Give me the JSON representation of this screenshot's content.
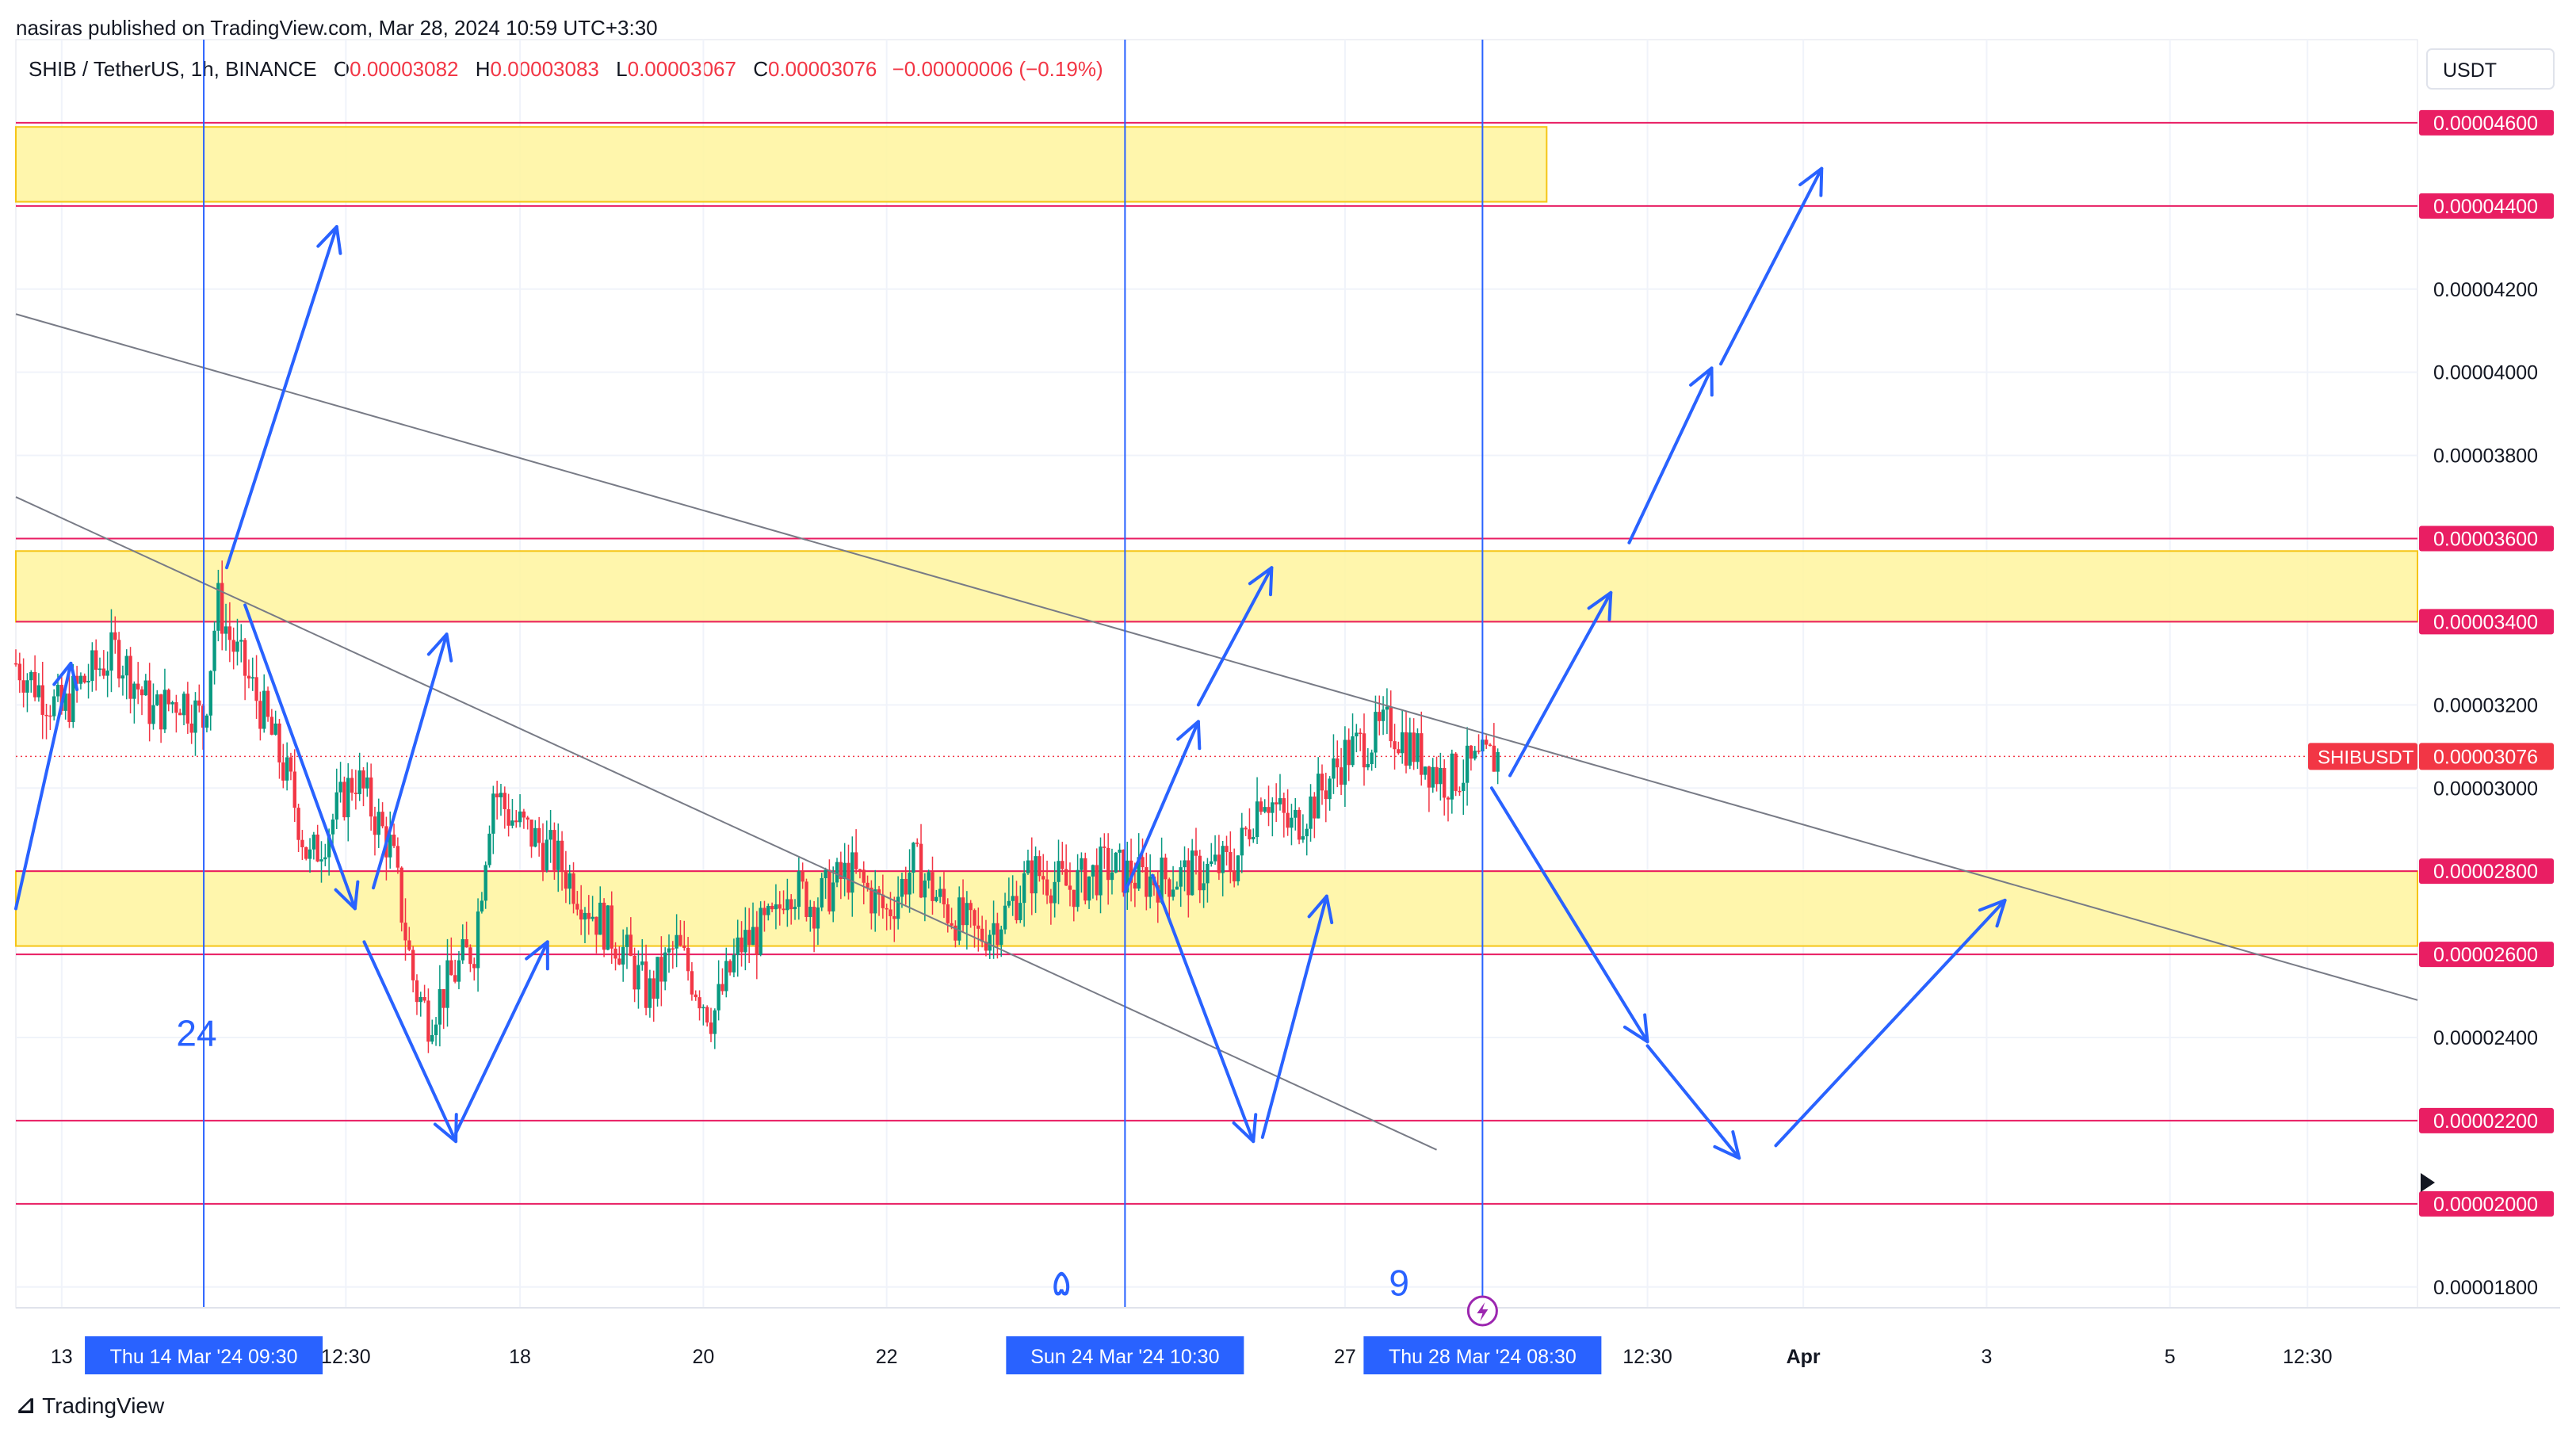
{
  "header": {
    "publisher": "nasiras published on TradingView.com, Mar 28, 2024 10:59 UTC+3:30"
  },
  "legend": {
    "symbol": "SHIB / TetherUS, 1h, BINANCE",
    "open_label": "O",
    "open": "0.00003082",
    "high_label": "H",
    "high": "0.00003083",
    "low_label": "L",
    "low": "0.00003067",
    "close_label": "C",
    "close": "0.00003076",
    "change": "−0.00000006 (−0.19%)"
  },
  "currency_button": "USDT",
  "footer": {
    "logo_text": "TradingView"
  },
  "colors": {
    "up": "#089981",
    "down": "#f23645",
    "zone": "#fff59d",
    "zone_border": "#f5c518",
    "level_line": "#e91e63",
    "arrow": "#2962ff",
    "trendline": "#787b86",
    "price_label_bg": "#f23645"
  },
  "chart_data": {
    "type": "candlestick",
    "symbol": "SHIBUSDT",
    "interval": "1h",
    "ylim": [
      1.75e-05,
      4.8e-05
    ],
    "y_ticks": [
      "0.00001800",
      "0.00002000",
      "0.00002200",
      "0.00002400",
      "0.00002600",
      "0.00002800",
      "0.00003000",
      "0.00003200",
      "0.00003400",
      "0.00003600",
      "0.00003800",
      "0.00004000",
      "0.00004200",
      "0.00004400",
      "0.00004600"
    ],
    "highlighted_levels": [
      "0.00004600",
      "0.00004400",
      "0.00003600",
      "0.00003400",
      "0.00002800",
      "0.00002600",
      "0.00002200",
      "0.00002000"
    ],
    "x_ticks": [
      "13",
      "12:30",
      "18",
      "20",
      "22",
      "27",
      "12:30",
      "Apr",
      "3",
      "5",
      "12:30"
    ],
    "x_tick_days": [
      13,
      16.1,
      18,
      20,
      22,
      27,
      30.3,
      32,
      34,
      36,
      37.5
    ],
    "xlim": [
      12.5,
      38.7
    ],
    "last_price": "0.00003076",
    "last_price_label": "SHIBUSDT",
    "time_markers": [
      {
        "label": "Thu 14 Mar '24   09:30",
        "day": 14.55
      },
      {
        "label": "Sun 24 Mar '24   10:30",
        "day": 24.6
      },
      {
        "label": "Thu 28 Mar '24   08:30",
        "day": 28.5
      }
    ],
    "annotations": [
      {
        "text": "24",
        "day": 14.25,
        "price": 2.38e-05
      },
      {
        "text": "۵",
        "day": 23.8,
        "price": 1.78e-05
      },
      {
        "text": "9",
        "day": 27.48,
        "price": 1.78e-05
      }
    ],
    "zones": [
      {
        "day_from": 12.5,
        "day_to": 29.2,
        "low": 4.41e-05,
        "high": 4.59e-05
      },
      {
        "day_from": 12.5,
        "day_to": 38.7,
        "low": 3.4e-05,
        "high": 3.57e-05
      },
      {
        "day_from": 12.5,
        "day_to": 38.7,
        "low": 2.62e-05,
        "high": 2.8e-05
      }
    ],
    "trendlines": [
      {
        "from": [
          12.5,
          4.14e-05
        ],
        "to": [
          38.7,
          2.49e-05
        ]
      },
      {
        "from": [
          12.5,
          3.7e-05
        ],
        "to": [
          28,
          2.13e-05
        ]
      }
    ],
    "arrows": [
      [
        [
          12.5,
          2.71e-05
        ],
        [
          13.1,
          3.3e-05
        ]
      ],
      [
        [
          14.8,
          3.53e-05
        ],
        [
          16.0,
          4.35e-05
        ]
      ],
      [
        [
          15.0,
          3.44e-05
        ],
        [
          16.2,
          2.71e-05
        ]
      ],
      [
        [
          16.4,
          2.76e-05
        ],
        [
          17.2,
          3.37e-05
        ]
      ],
      [
        [
          16.3,
          2.63e-05
        ],
        [
          17.3,
          2.15e-05
        ]
      ],
      [
        [
          17.3,
          2.17e-05
        ],
        [
          18.3,
          2.63e-05
        ]
      ],
      [
        [
          24.6,
          2.75e-05
        ],
        [
          25.4,
          3.16e-05
        ]
      ],
      [
        [
          25.4,
          3.2e-05
        ],
        [
          26.2,
          3.53e-05
        ]
      ],
      [
        [
          24.9,
          2.79e-05
        ],
        [
          26.0,
          2.15e-05
        ]
      ],
      [
        [
          26.1,
          2.16e-05
        ],
        [
          26.8,
          2.74e-05
        ]
      ],
      [
        [
          28.8,
          3.03e-05
        ],
        [
          29.9,
          3.47e-05
        ]
      ],
      [
        [
          30.1,
          3.59e-05
        ],
        [
          31.0,
          4.01e-05
        ]
      ],
      [
        [
          31.1,
          4.02e-05
        ],
        [
          32.2,
          4.49e-05
        ]
      ],
      [
        [
          28.6,
          3e-05
        ],
        [
          30.3,
          2.39e-05
        ]
      ],
      [
        [
          30.3,
          2.38e-05
        ],
        [
          31.3,
          2.11e-05
        ]
      ],
      [
        [
          31.7,
          2.14e-05
        ],
        [
          34.2,
          2.73e-05
        ]
      ]
    ],
    "close_path": [
      [
        12.5,
        3.3e-05
      ],
      [
        13.0,
        3.18e-05
      ],
      [
        13.2,
        3.25e-05
      ],
      [
        13.6,
        3.33e-05
      ],
      [
        14.0,
        3.18e-05
      ],
      [
        14.3,
        3.22e-05
      ],
      [
        14.55,
        3.16e-05
      ],
      [
        14.7,
        3.45e-05
      ],
      [
        14.85,
        3.35e-05
      ],
      [
        15.2,
        3.18e-05
      ],
      [
        15.5,
        3e-05
      ],
      [
        15.7,
        2.82e-05
      ],
      [
        15.9,
        2.9e-05
      ],
      [
        16.2,
        3.03e-05
      ],
      [
        16.6,
        2.85e-05
      ],
      [
        16.85,
        2.52e-05
      ],
      [
        17.0,
        2.45e-05
      ],
      [
        17.3,
        2.56e-05
      ],
      [
        17.5,
        2.62e-05
      ],
      [
        17.7,
        3e-05
      ],
      [
        17.9,
        2.93e-05
      ],
      [
        18.4,
        2.83e-05
      ],
      [
        18.8,
        2.7e-05
      ],
      [
        19.1,
        2.62e-05
      ],
      [
        19.4,
        2.5e-05
      ],
      [
        19.7,
        2.62e-05
      ],
      [
        20.1,
        2.45e-05
      ],
      [
        20.4,
        2.62e-05
      ],
      [
        20.8,
        2.68e-05
      ],
      [
        20.9,
        2.78e-05
      ],
      [
        21.2,
        2.72e-05
      ],
      [
        21.6,
        2.8e-05
      ],
      [
        22.0,
        2.7e-05
      ],
      [
        22.3,
        2.82e-05
      ],
      [
        22.6,
        2.72e-05
      ],
      [
        23.0,
        2.64e-05
      ],
      [
        23.3,
        2.7e-05
      ],
      [
        23.6,
        2.8e-05
      ],
      [
        24.0,
        2.76e-05
      ],
      [
        24.4,
        2.81e-05
      ],
      [
        24.8,
        2.78e-05
      ],
      [
        25.3,
        2.79e-05
      ],
      [
        25.8,
        2.82e-05
      ],
      [
        26.1,
        3e-05
      ],
      [
        26.4,
        2.9e-05
      ],
      [
        26.7,
        2.98e-05
      ],
      [
        27.0,
        3.08e-05
      ],
      [
        27.3,
        3.12e-05
      ],
      [
        27.5,
        3.15e-05
      ],
      [
        27.8,
        3.08e-05
      ],
      [
        28.1,
        3.02e-05
      ],
      [
        28.5,
        3.06e-05
      ],
      [
        28.7,
        3.08e-05
      ]
    ]
  }
}
